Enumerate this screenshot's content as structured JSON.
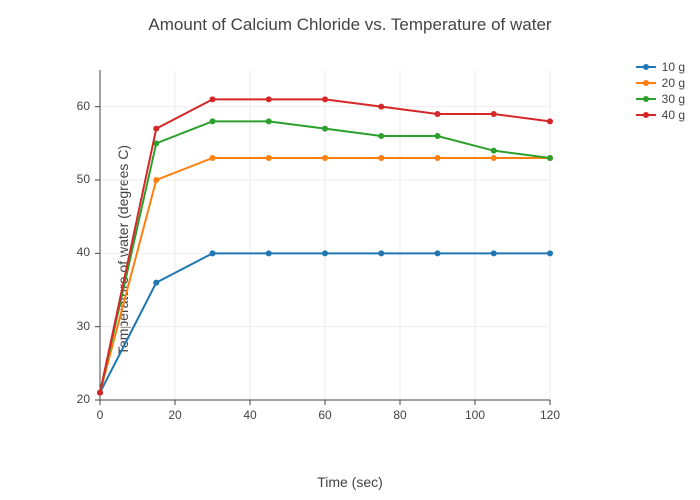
{
  "chart": {
    "type": "line",
    "title": "Amount of Calcium Chloride vs. Temperature of water",
    "title_fontsize": 17,
    "title_color": "#444444",
    "xlabel": "Time (sec)",
    "ylabel": "Temperature of water (degrees C)",
    "label_fontsize": 14,
    "label_color": "#444444",
    "background_color": "#ffffff",
    "grid_color": "#eeeeee",
    "axis_line_color": "#444444",
    "tick_label_fontsize": 12,
    "tick_label_color": "#444444",
    "xlim": [
      0,
      120
    ],
    "ylim": [
      20,
      65
    ],
    "xtick_step": 20,
    "ytick_step": 10,
    "xticks": [
      0,
      20,
      40,
      60,
      80,
      100,
      120
    ],
    "yticks": [
      20,
      30,
      40,
      50,
      60
    ],
    "x_values": [
      0,
      15,
      30,
      45,
      60,
      75,
      90,
      105,
      120
    ],
    "line_width": 2,
    "marker_size": 6,
    "series": [
      {
        "name": "10 g",
        "color": "#1f77b4",
        "values": [
          21,
          36,
          40,
          40,
          40,
          40,
          40,
          40,
          40
        ]
      },
      {
        "name": "20 g",
        "color": "#ff7f0e",
        "values": [
          21,
          50,
          53,
          53,
          53,
          53,
          53,
          53,
          53
        ]
      },
      {
        "name": "30 g",
        "color": "#2ca02c",
        "values": [
          21,
          55,
          58,
          58,
          57,
          56,
          56,
          54,
          53
        ]
      },
      {
        "name": "40 g",
        "color": "#d62728",
        "values": [
          21,
          57,
          61,
          61,
          61,
          60,
          59,
          59,
          58
        ]
      }
    ],
    "legend_fontsize": 12,
    "legend_position": "right"
  }
}
